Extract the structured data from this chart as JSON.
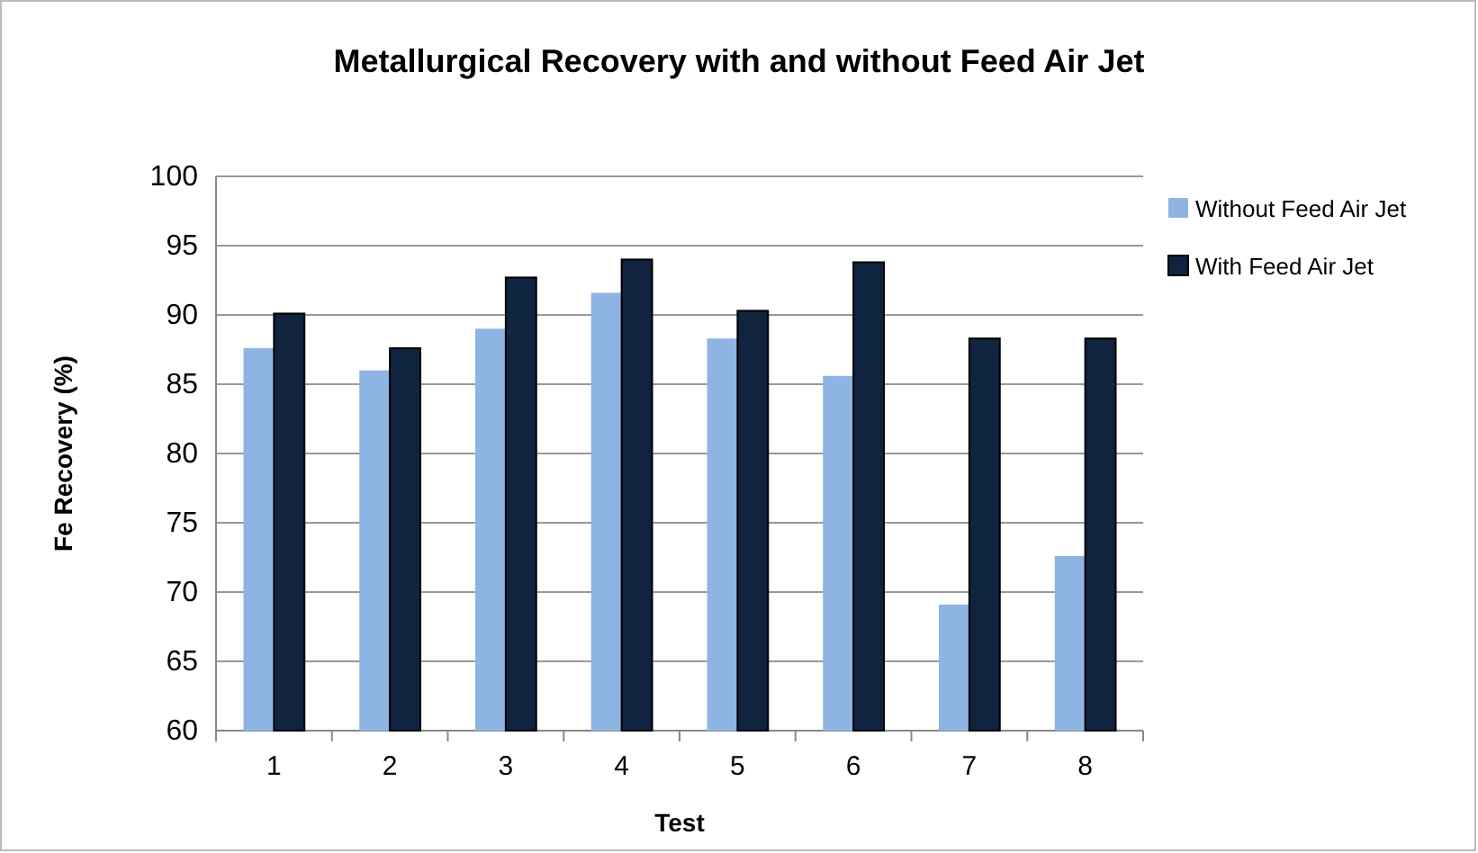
{
  "chart_data": {
    "type": "bar",
    "title": "Metallurgical Recovery with and without Feed Air Jet",
    "xlabel": "Test",
    "ylabel": "Fe Recovery (%)",
    "categories": [
      "1",
      "2",
      "3",
      "4",
      "5",
      "6",
      "7",
      "8"
    ],
    "series": [
      {
        "name": "Without Feed Air Jet",
        "color": "#8eb4e3",
        "values": [
          87.6,
          86.0,
          89.0,
          91.6,
          88.3,
          85.6,
          69.1,
          72.6
        ]
      },
      {
        "name": "With Feed Air Jet",
        "color": "#10243f",
        "values": [
          90.1,
          87.6,
          92.7,
          94.0,
          90.3,
          93.8,
          88.3,
          88.3
        ]
      }
    ],
    "ylim": [
      60,
      100
    ],
    "yticks": [
      60,
      65,
      70,
      75,
      80,
      85,
      90,
      95,
      100
    ],
    "grid": "y",
    "legend": "right"
  }
}
